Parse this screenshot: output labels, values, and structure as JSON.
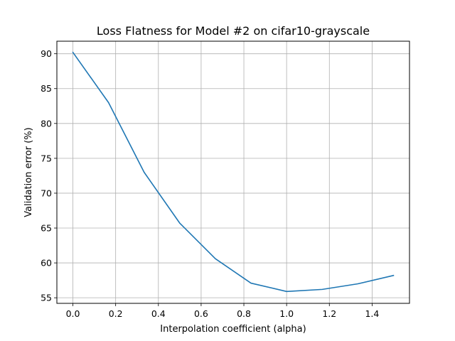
{
  "chart_data": {
    "type": "line",
    "title": "Loss Flatness for Model #2 on cifar10-grayscale",
    "xlabel": "Interpolation coefficient (alpha)",
    "ylabel": "Validation error (%)",
    "xlim": [
      -0.075,
      1.575
    ],
    "ylim": [
      54.2,
      91.8
    ],
    "grid": true,
    "xticks": [
      0.0,
      0.2,
      0.4,
      0.6,
      0.8,
      1.0,
      1.2,
      1.4
    ],
    "xtick_labels": [
      "0.0",
      "0.2",
      "0.4",
      "0.6",
      "0.8",
      "1.0",
      "1.2",
      "1.4"
    ],
    "yticks": [
      55,
      60,
      65,
      70,
      75,
      80,
      85,
      90
    ],
    "ytick_labels": [
      "55",
      "60",
      "65",
      "70",
      "75",
      "80",
      "85",
      "90"
    ],
    "series": [
      {
        "color": "#1f77b4",
        "x": [
          0.0,
          0.1667,
          0.3333,
          0.5,
          0.6667,
          0.8333,
          1.0,
          1.1667,
          1.3333,
          1.5
        ],
        "y": [
          90.2,
          83.0,
          73.0,
          65.7,
          60.6,
          57.1,
          55.9,
          56.2,
          57.0,
          58.2
        ]
      }
    ]
  }
}
